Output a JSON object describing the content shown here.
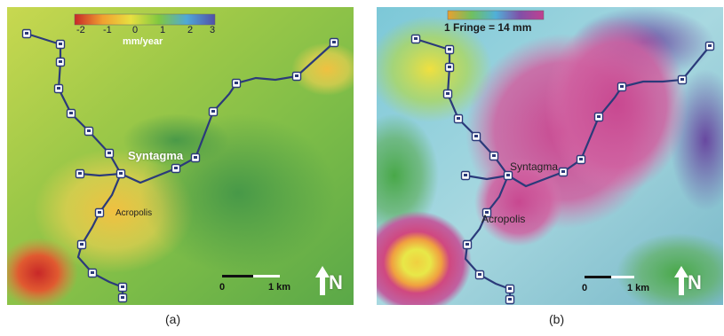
{
  "panel_a": {
    "caption": "(a)",
    "colorbar": {
      "ticks": [
        "-2",
        "-1",
        "0",
        "1",
        "2",
        "3"
      ],
      "unit": "mm/year"
    },
    "labels": {
      "syntagma": "Syntagma",
      "acropolis": "Acropolis"
    },
    "scale": {
      "start": "0",
      "end": "1 km"
    },
    "north": "N"
  },
  "panel_b": {
    "caption": "(b)",
    "fringe_label": "1 Fringe = 14 mm",
    "labels": {
      "syntagma": "Syntagma",
      "acropolis": "Acropolis"
    },
    "scale": {
      "start": "0",
      "end": "1 km"
    },
    "north": "N"
  },
  "colors": {
    "metro_line": "#2b3a7a",
    "colorbar_a": [
      "#d23a2a",
      "#f0a030",
      "#e8e040",
      "#80c840",
      "#50a8d8",
      "#6060b0"
    ],
    "colorbar_b": [
      "#e8a030",
      "#70c060",
      "#50b0d8",
      "#8050a8",
      "#c04090"
    ]
  }
}
